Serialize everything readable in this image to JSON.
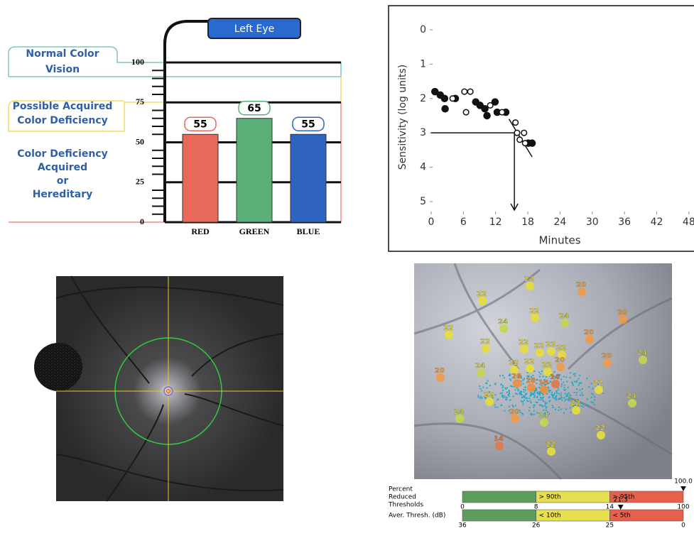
{
  "chart_data": [
    {
      "type": "bar",
      "title": "Left Eye",
      "categories": [
        "RED",
        "GREEN",
        "BLUE"
      ],
      "values": [
        55,
        65,
        55
      ],
      "colors": [
        "#e8685a",
        "#5bb078",
        "#2f63c0"
      ],
      "ylim": [
        0,
        110
      ],
      "yticks": [
        0,
        25,
        50,
        75,
        100
      ],
      "zones": [
        {
          "lines": [
            "Normal Color",
            "Vision"
          ],
          "color": "#7fc6c0"
        },
        {
          "lines": [
            "Possible Acquired",
            "Color Deficiency"
          ],
          "color": "#ece060"
        },
        {
          "lines": [
            "Color Deficiency",
            "Acquired",
            "or",
            "Hereditary"
          ],
          "color": "#f08a8a"
        }
      ]
    },
    {
      "type": "scatter",
      "xlabel": "Minutes",
      "ylabel": "Sensitivity (log units)",
      "xlim": [
        -1,
        49
      ],
      "ylim": [
        5.25,
        -0.75
      ],
      "xticks": [
        0,
        6,
        12,
        18,
        24,
        30,
        36,
        42,
        48
      ],
      "yticks": [
        0,
        1,
        2,
        3,
        4,
        5
      ],
      "series": [
        {
          "marker": "filled",
          "color": "#111111",
          "x": [
            0.7,
            1.7,
            2.5,
            2.6,
            4.5,
            8.3,
            9.1,
            10,
            10.4,
            11.9,
            12.3,
            13.9,
            18.1,
            18.8
          ],
          "y": [
            1.8,
            1.9,
            2,
            2.3,
            2,
            2.1,
            2.2,
            2.3,
            2.5,
            2.1,
            2.4,
            2.4,
            3.3,
            3.3
          ]
        },
        {
          "marker": "open",
          "color": "#111111",
          "x": [
            4,
            6.2,
            7.3,
            6.5,
            11,
            13.2,
            15.7,
            16,
            17.3,
            16.5,
            17.5
          ],
          "y": [
            2,
            1.8,
            1.8,
            2.4,
            2.2,
            2.4,
            2.7,
            3,
            3,
            3.2,
            3.3
          ]
        }
      ],
      "reference": {
        "x": 15.5,
        "y": 3
      },
      "fit": {
        "x": [
          14.5,
          18.8
        ],
        "y": [
          2.6,
          3.7
        ]
      }
    },
    {
      "type": "microperimetry",
      "values": [
        22,
        20,
        22,
        22,
        24,
        24,
        20,
        22,
        20,
        22,
        22,
        22,
        22,
        22,
        20,
        24,
        20,
        24,
        22,
        22,
        20,
        22,
        26,
        18,
        18,
        14,
        22,
        22,
        24,
        22,
        20,
        24,
        24,
        22,
        14,
        22
      ],
      "colors": [
        "#e6dc3c",
        "#f09a48",
        "#e6dc3c",
        "#e6dc3c",
        "#c6d64e",
        "#c6d64e",
        "#f09a48",
        "#e6dc3c",
        "#f09a48",
        "#e6dc3c",
        "#e6dc3c",
        "#e6dc3c",
        "#e6dc3c",
        "#e6dc3c",
        "#f09a48",
        "#c6d64e",
        "#f09a48",
        "#c6d64e",
        "#e6dc3c",
        "#e6dc3c",
        "#f09a48",
        "#e6dc3c",
        "#ee9040",
        "#ee9040",
        "#ee9040",
        "#e0784a",
        "#e6dc3c",
        "#e6dc3c",
        "#c6d64e",
        "#e6dc3c",
        "#f09a48",
        "#c6d64e",
        "#c6d64e",
        "#e6dc3c",
        "#e0784a",
        "#e6dc3c"
      ],
      "scales": [
        {
          "title_lines": [
            "Percent",
            "Reduced",
            "Thresholds"
          ],
          "ticks": [
            0,
            8,
            14,
            100
          ],
          "band_colors": [
            "#5e9e5c",
            "#e6e050",
            "#e6604c"
          ],
          "band_labels": [
            "> 90th",
            "> 95th"
          ],
          "marker": {
            "value": 100,
            "label": "100.0"
          }
        },
        {
          "title_lines": [
            "Aver. Thresh. (dB)"
          ],
          "ticks": [
            36,
            26,
            25,
            0
          ],
          "band_colors": [
            "#5e9e5c",
            "#e6e050",
            "#e6604c"
          ],
          "band_labels": [
            "< 10th",
            "< 5th"
          ],
          "marker": 21.3
        }
      ]
    }
  ]
}
